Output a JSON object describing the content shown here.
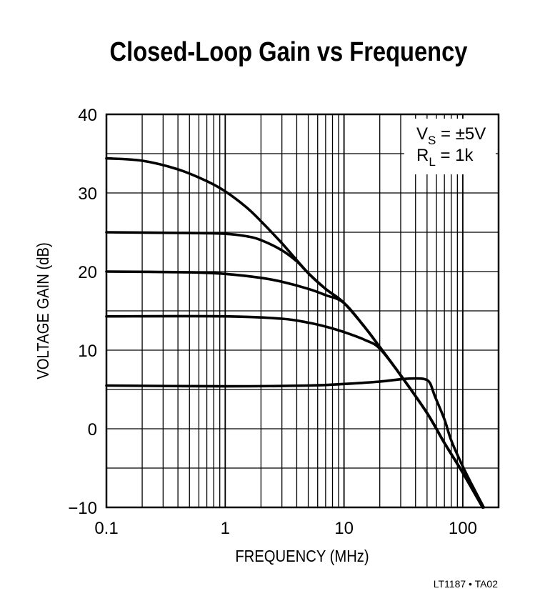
{
  "chart_data": {
    "type": "line",
    "title": "Closed-Loop Gain vs Frequency",
    "xlabel": "FREQUENCY (MHz)",
    "ylabel": "VOLTAGE GAIN (dB)",
    "xscale": "log",
    "xlim": [
      0.1,
      200
    ],
    "ylim": [
      -10,
      40
    ],
    "xticks": [
      0.1,
      1,
      10,
      100
    ],
    "xtick_labels": [
      "0.1",
      "1",
      "10",
      "100"
    ],
    "yticks": [
      -10,
      0,
      10,
      20,
      30,
      40
    ],
    "ytick_labels": [
      "−10",
      "0",
      "10",
      "20",
      "30",
      "40"
    ],
    "grid": true,
    "annotation": {
      "line1_main": "V",
      "line1_sub": "S",
      "line1_rest": " = ±5V",
      "line2_main": "R",
      "line2_sub": "L",
      "line2_rest": " = 1k",
      "placement": "top-right"
    },
    "footnote": "LT1187 • TA02",
    "line_color": "#000000",
    "series": [
      {
        "x": [
          0.1,
          0.2,
          0.4,
          0.7,
          1,
          1.5,
          2,
          3,
          5,
          7,
          10,
          15,
          20,
          30,
          50,
          70,
          100,
          147
        ],
        "y": [
          34.4,
          34.1,
          33,
          31.5,
          30.2,
          28.2,
          26.4,
          23.6,
          19.8,
          17.8,
          16,
          12.9,
          10.4,
          6.8,
          2,
          -1.8,
          -5.6,
          -10
        ]
      },
      {
        "x": [
          0.1,
          0.5,
          1,
          1.5,
          2,
          3,
          4,
          5,
          7,
          10,
          15,
          20,
          30,
          50,
          70,
          100,
          147
        ],
        "y": [
          25,
          24.9,
          24.8,
          24.5,
          24,
          22.7,
          21.3,
          19.8,
          17.8,
          16,
          12.9,
          10.4,
          6.8,
          2,
          -1.8,
          -5.6,
          -10
        ]
      },
      {
        "x": [
          0.1,
          0.5,
          1,
          2,
          3,
          5,
          7,
          10,
          15,
          20,
          30,
          50,
          70,
          100,
          147
        ],
        "y": [
          20,
          19.9,
          19.7,
          19.2,
          18.7,
          17.8,
          17,
          16,
          12.9,
          10.4,
          6.8,
          2,
          -1.8,
          -5.6,
          -10
        ]
      },
      {
        "x": [
          0.1,
          1,
          3,
          5,
          7,
          10,
          15,
          20,
          30,
          50,
          70,
          100,
          147
        ],
        "y": [
          14.3,
          14.3,
          14,
          13.5,
          13,
          12.3,
          11.3,
          10.2,
          6.8,
          2,
          -1.8,
          -5.6,
          -10
        ]
      },
      {
        "x": [
          0.1,
          1,
          5,
          10,
          20,
          30,
          40,
          48,
          53,
          58,
          70,
          80,
          100,
          120,
          150
        ],
        "y": [
          5.5,
          5.4,
          5.5,
          5.7,
          6,
          6.3,
          6.4,
          6.3,
          5.8,
          4.2,
          1.2,
          -1.5,
          -4.8,
          -7.2,
          -10
        ]
      }
    ]
  }
}
